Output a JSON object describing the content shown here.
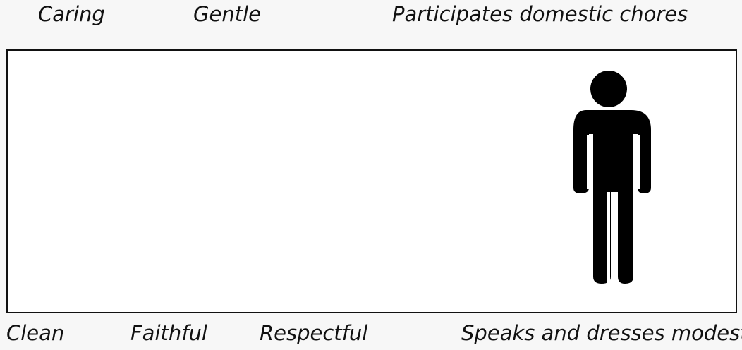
{
  "top_labels": [
    "Caring",
    "Gentle",
    "Participates domestic chores"
  ],
  "bottom_labels": [
    "Clean",
    "Faithful",
    "Respectful",
    "Speaks and dresses modestly"
  ],
  "figure": {
    "icon": "person-icon",
    "color": "#000000"
  }
}
